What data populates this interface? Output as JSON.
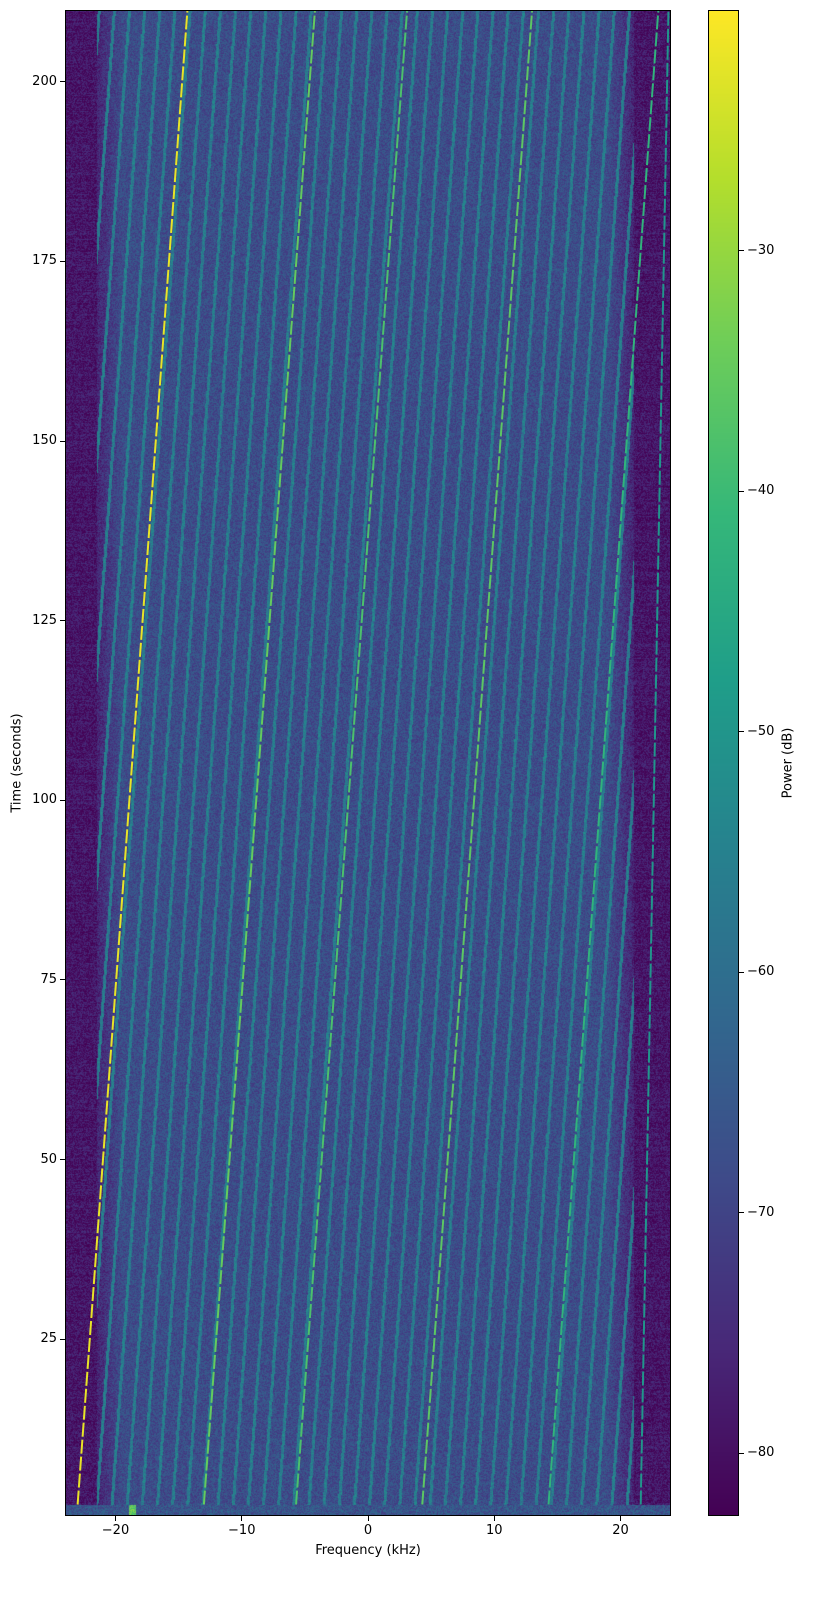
{
  "chart_data": {
    "type": "heatmap",
    "subtype": "spectrogram",
    "xlabel": "Frequency (kHz)",
    "ylabel": "Time (seconds)",
    "xlim": [
      -24,
      24
    ],
    "ylim": [
      0.4,
      210
    ],
    "xticks": [
      -20,
      -10,
      0,
      10,
      20
    ],
    "xtick_labels": [
      "−20",
      "−10",
      "0",
      "10",
      "20"
    ],
    "yticks": [
      25,
      50,
      75,
      100,
      125,
      150,
      175,
      200
    ],
    "ytick_labels": [
      "25",
      "50",
      "75",
      "100",
      "125",
      "150",
      "175",
      "200"
    ],
    "colormap": "viridis",
    "colorbar": {
      "label": "Power (dB)",
      "vmin": -82.6,
      "vmax": -20,
      "ticks": [
        -80,
        -70,
        -60,
        -50,
        -40,
        -30
      ],
      "tick_labels": [
        "−80",
        "−70",
        "−60",
        "−50",
        "−40",
        "−30"
      ]
    },
    "noise_floor_db": -68,
    "passband_khz": [
      -21.5,
      21
    ],
    "drift_khz_per_s": 0.0413,
    "strong_lines": [
      {
        "start_khz": -23.0,
        "end_khz": -14.3,
        "peak_db": -22
      },
      {
        "start_khz": -13.0,
        "end_khz": -4.2,
        "peak_db": -35
      },
      {
        "start_khz": -5.7,
        "end_khz": 3.1,
        "peak_db": -38
      },
      {
        "start_khz": 4.3,
        "end_khz": 13.0,
        "peak_db": -36
      },
      {
        "start_khz": 14.3,
        "end_khz": 23.0,
        "peak_db": -42
      },
      {
        "start_khz": 21.6,
        "end_khz": 23.8,
        "peak_db": -50
      }
    ],
    "weak_line_spacing_khz": 1.2,
    "grid": false
  }
}
